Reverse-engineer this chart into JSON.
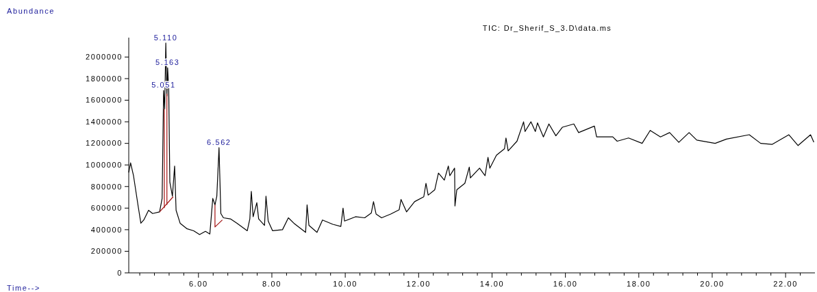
{
  "chart_data": {
    "type": "line",
    "title": "TIC: Dr_Sherif_S_3.D\\data.ms",
    "xlim": [
      4.1,
      22.8
    ],
    "ylim": [
      0,
      2180000
    ],
    "xticks": [
      {
        "value": 4.4,
        "label": null
      },
      {
        "value": 4.8,
        "label": null
      },
      {
        "value": 5.2,
        "label": null
      },
      {
        "value": 5.6,
        "label": null
      },
      {
        "value": 6,
        "label": "6.00"
      },
      {
        "value": 6.4,
        "label": null
      },
      {
        "value": 6.8,
        "label": null
      },
      {
        "value": 7.2,
        "label": null
      },
      {
        "value": 7.6,
        "label": null
      },
      {
        "value": 8,
        "label": "8.00"
      },
      {
        "value": 8.4,
        "label": null
      },
      {
        "value": 8.8,
        "label": null
      },
      {
        "value": 9.2,
        "label": null
      },
      {
        "value": 9.6,
        "label": null
      },
      {
        "value": 10,
        "label": "10.00"
      },
      {
        "value": 10.4,
        "label": null
      },
      {
        "value": 10.8,
        "label": null
      },
      {
        "value": 11.2,
        "label": null
      },
      {
        "value": 11.6,
        "label": null
      },
      {
        "value": 12,
        "label": "12.00"
      },
      {
        "value": 12.4,
        "label": null
      },
      {
        "value": 12.8,
        "label": null
      },
      {
        "value": 13.2,
        "label": null
      },
      {
        "value": 13.6,
        "label": null
      },
      {
        "value": 14,
        "label": "14.00"
      },
      {
        "value": 14.4,
        "label": null
      },
      {
        "value": 14.8,
        "label": null
      },
      {
        "value": 15.2,
        "label": null
      },
      {
        "value": 15.6,
        "label": null
      },
      {
        "value": 16,
        "label": "16.00"
      },
      {
        "value": 16.4,
        "label": null
      },
      {
        "value": 16.8,
        "label": null
      },
      {
        "value": 17.2,
        "label": null
      },
      {
        "value": 17.6,
        "label": null
      },
      {
        "value": 18,
        "label": "18.00"
      },
      {
        "value": 18.4,
        "label": null
      },
      {
        "value": 18.8,
        "label": null
      },
      {
        "value": 19.2,
        "label": null
      },
      {
        "value": 19.6,
        "label": null
      },
      {
        "value": 20,
        "label": "20.00"
      },
      {
        "value": 20.4,
        "label": null
      },
      {
        "value": 20.8,
        "label": null
      },
      {
        "value": 21.2,
        "label": null
      },
      {
        "value": 21.6,
        "label": null
      },
      {
        "value": 22,
        "label": "22.00"
      },
      {
        "value": 22.4,
        "label": null
      }
    ],
    "yticks": [
      0,
      200000,
      400000,
      600000,
      800000,
      1000000,
      1200000,
      1400000,
      1600000,
      1800000,
      2000000
    ],
    "marker": "none",
    "line_style": "solid",
    "series": [
      {
        "color": "#000000",
        "x": [
          4.1,
          4.15,
          4.23,
          4.36,
          4.43,
          4.51,
          4.64,
          4.75,
          4.94,
          5.01,
          5.05,
          5.08,
          5.11,
          5.14,
          5.16,
          5.19,
          5.22,
          5.29,
          5.35,
          5.39,
          5.5,
          5.68,
          5.87,
          6.03,
          6.19,
          6.31,
          6.39,
          6.45,
          6.5,
          6.56,
          6.61,
          6.68,
          6.87,
          7.05,
          7.33,
          7.4,
          7.44,
          7.49,
          7.59,
          7.64,
          7.8,
          7.84,
          7.9,
          8.02,
          8.29,
          8.45,
          8.6,
          8.92,
          8.96,
          9.01,
          9.23,
          9.38,
          9.66,
          9.88,
          9.94,
          9.98,
          10.28,
          10.53,
          10.71,
          10.77,
          10.84,
          10.99,
          11.24,
          11.47,
          11.52,
          11.67,
          11.89,
          12.14,
          12.2,
          12.26,
          12.44,
          12.54,
          12.7,
          12.81,
          12.85,
          12.98,
          12.99,
          13.04,
          13.26,
          13.38,
          13.41,
          13.66,
          13.81,
          13.89,
          13.94,
          14.12,
          14.34,
          14.38,
          14.44,
          14.68,
          14.86,
          14.9,
          15.06,
          15.18,
          15.24,
          15.4,
          15.55,
          15.74,
          15.92,
          16.23,
          16.36,
          16.79,
          16.85,
          17.29,
          17.41,
          17.72,
          18.09,
          18.31,
          18.59,
          18.84,
          19.09,
          19.37,
          19.58,
          20.08,
          20.39,
          21.01,
          21.32,
          21.63,
          22.09,
          22.34,
          22.68,
          22.77
        ],
        "values": [
          930000,
          1020000,
          900000,
          610000,
          460000,
          490000,
          580000,
          550000,
          565000,
          690000,
          1690000,
          1520000,
          2130000,
          1640000,
          1900000,
          1690000,
          840000,
          710000,
          990000,
          580000,
          460000,
          410000,
          390000,
          355000,
          385000,
          360000,
          690000,
          630000,
          710000,
          1160000,
          550000,
          510000,
          500000,
          460000,
          390000,
          500000,
          755000,
          520000,
          650000,
          500000,
          440000,
          710000,
          480000,
          390000,
          400000,
          510000,
          460000,
          375000,
          630000,
          440000,
          375000,
          490000,
          450000,
          430000,
          600000,
          480000,
          520000,
          510000,
          555000,
          660000,
          545000,
          510000,
          545000,
          585000,
          680000,
          565000,
          660000,
          705000,
          830000,
          720000,
          770000,
          925000,
          860000,
          990000,
          900000,
          970000,
          620000,
          770000,
          830000,
          980000,
          880000,
          970000,
          900000,
          1070000,
          970000,
          1090000,
          1150000,
          1250000,
          1130000,
          1220000,
          1400000,
          1310000,
          1400000,
          1310000,
          1390000,
          1260000,
          1380000,
          1270000,
          1350000,
          1380000,
          1300000,
          1360000,
          1260000,
          1260000,
          1220000,
          1250000,
          1200000,
          1320000,
          1260000,
          1300000,
          1210000,
          1300000,
          1230000,
          1200000,
          1240000,
          1280000,
          1200000,
          1190000,
          1280000,
          1180000,
          1280000,
          1210000
        ]
      },
      {
        "color": "#a01010",
        "x": [
          4.94,
          5.31
        ],
        "values": [
          565000,
          705000
        ]
      },
      {
        "color": "#a01010",
        "x": [
          5.07,
          5.07
        ],
        "values": [
          600000,
          1520000
        ]
      },
      {
        "color": "#a01010",
        "x": [
          5.14,
          5.14
        ],
        "values": [
          630000,
          1660000
        ]
      },
      {
        "color": "#a01010",
        "x": [
          6.45,
          6.45,
          6.65
        ],
        "values": [
          630000,
          425000,
          490000
        ]
      }
    ],
    "annotations": [
      "Abundance",
      "Time-->",
      {
        "text": "5.110",
        "x": 5.11,
        "y": 2130000
      },
      {
        "text": "5.163",
        "x": 5.16,
        "y": 1900000
      },
      {
        "text": "5.051",
        "x": 5.05,
        "y": 1690000
      },
      {
        "text": "6.562",
        "x": 6.56,
        "y": 1160000
      }
    ]
  }
}
